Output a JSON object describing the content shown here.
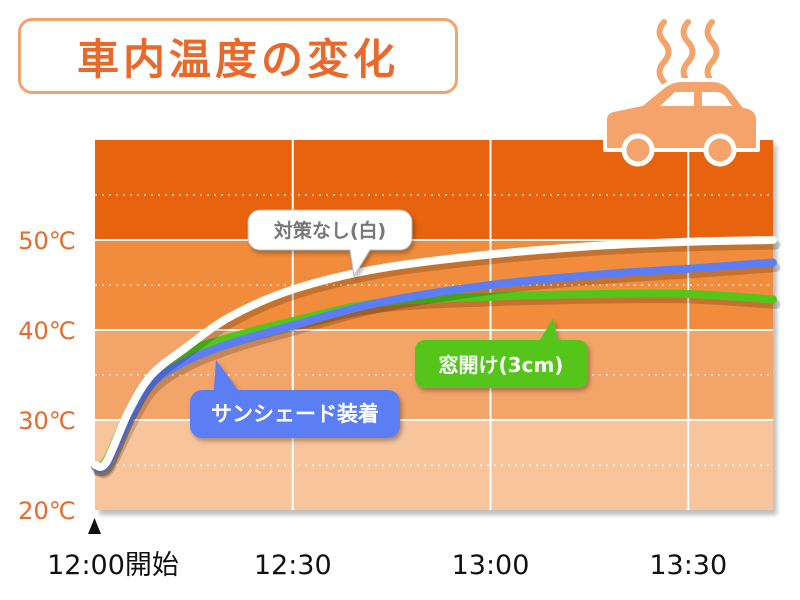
{
  "title": "車内温度の変化",
  "icons": {
    "car": "car-icon",
    "heat": "heat-waves-icon",
    "start": "start-triangle-icon"
  },
  "colors": {
    "band_top": "#e8630a",
    "band_40_50": "#f08c3a",
    "band_30_40": "#f3a469",
    "band_20_30": "#f7c49c",
    "series_none": "#ffffff",
    "series_shade": "#5b7ef5",
    "series_window": "#55c51a",
    "ytick": "#e8692a",
    "car": "#f4a46a"
  },
  "chart_data": {
    "type": "line",
    "title": "車内温度の変化",
    "xlabel": "",
    "ylabel": "",
    "xlim": [
      0,
      60
    ],
    "ylim": [
      20,
      60
    ],
    "grid": true,
    "x_ticks": [
      {
        "value": 0,
        "label": "12:00開始"
      },
      {
        "value": 17.5,
        "label": "12:30"
      },
      {
        "value": 35,
        "label": "13:00"
      },
      {
        "value": 52.5,
        "label": "13:30"
      }
    ],
    "y_ticks": [
      {
        "value": 20,
        "label": "20℃"
      },
      {
        "value": 30,
        "label": "30℃"
      },
      {
        "value": 40,
        "label": "40℃"
      },
      {
        "value": 50,
        "label": "50℃"
      }
    ],
    "series": [
      {
        "name": "対策なし(白)",
        "color_key": "series_none",
        "x": [
          0,
          1,
          3,
          5,
          8,
          12,
          17.5,
          25,
          35,
          45,
          52.5,
          60
        ],
        "y": [
          25,
          25.3,
          31,
          35,
          38,
          41.5,
          44.5,
          46.8,
          48.4,
          49.4,
          49.8,
          50
        ]
      },
      {
        "name": "サンシェード装着",
        "color_key": "series_shade",
        "x": [
          0,
          1,
          3,
          5,
          8,
          12,
          17.5,
          25,
          35,
          45,
          52.5,
          60
        ],
        "y": [
          24.8,
          25,
          30,
          34,
          36.5,
          38.5,
          40.5,
          43,
          45,
          46.2,
          46.8,
          47.5
        ]
      },
      {
        "name": "窓開け(3cm)",
        "color_key": "series_window",
        "x": [
          0,
          1,
          3,
          5,
          8,
          12,
          17.5,
          25,
          35,
          45,
          52.5,
          60
        ],
        "y": [
          24.8,
          25.5,
          31,
          35,
          37.5,
          39.2,
          41,
          43,
          43.7,
          44,
          44,
          43.4
        ]
      }
    ]
  }
}
